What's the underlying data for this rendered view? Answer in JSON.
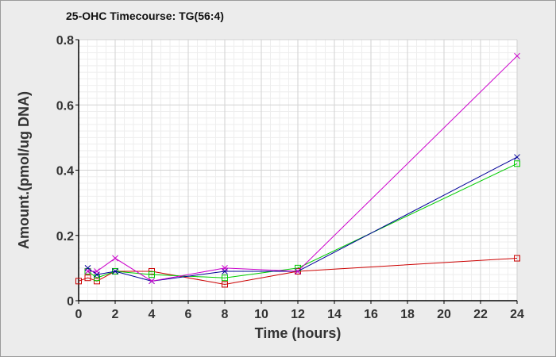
{
  "chart_data": {
    "type": "line",
    "title": "25-OHC Timecourse: TG(56:4)",
    "xlabel": "Time (hours)",
    "ylabel": "Amount.(pmol/ug DNA)",
    "xlim": [
      0,
      24
    ],
    "ylim": [
      0,
      0.8
    ],
    "xticks": [
      "0",
      "2",
      "4",
      "6",
      "8",
      "10",
      "12",
      "14",
      "16",
      "18",
      "20",
      "22",
      "24"
    ],
    "yticks": [
      "0",
      "0.2",
      "0.4",
      "0.6",
      "0.8"
    ],
    "grid": true,
    "legend": "none",
    "series": [
      {
        "color": "#cc0000",
        "marker": "square",
        "points": [
          [
            0,
            0.06
          ],
          [
            0.5,
            0.07
          ],
          [
            1,
            0.06
          ],
          [
            2,
            0.09
          ],
          [
            4,
            0.09
          ],
          [
            8,
            0.05
          ],
          [
            12,
            0.09
          ],
          [
            24,
            0.13
          ]
        ]
      },
      {
        "color": "#00cc00",
        "marker": "square",
        "points": [
          [
            0.5,
            0.09
          ],
          [
            1,
            0.07
          ],
          [
            2,
            0.09
          ],
          [
            4,
            0.08
          ],
          [
            8,
            0.07
          ],
          [
            12,
            0.1
          ],
          [
            24,
            0.42
          ]
        ]
      },
      {
        "color": "#000099",
        "marker": "x",
        "points": [
          [
            0.5,
            0.1
          ],
          [
            1,
            0.08
          ],
          [
            2,
            0.09
          ],
          [
            4,
            0.06
          ],
          [
            8,
            0.09
          ],
          [
            12,
            0.09
          ],
          [
            24,
            0.44
          ]
        ]
      },
      {
        "color": "#cc00cc",
        "marker": "x",
        "points": [
          [
            0.5,
            0.09
          ],
          [
            1,
            0.09
          ],
          [
            2,
            0.13
          ],
          [
            4,
            0.06
          ],
          [
            8,
            0.1
          ],
          [
            12,
            0.09
          ],
          [
            24,
            0.75
          ]
        ]
      }
    ]
  }
}
